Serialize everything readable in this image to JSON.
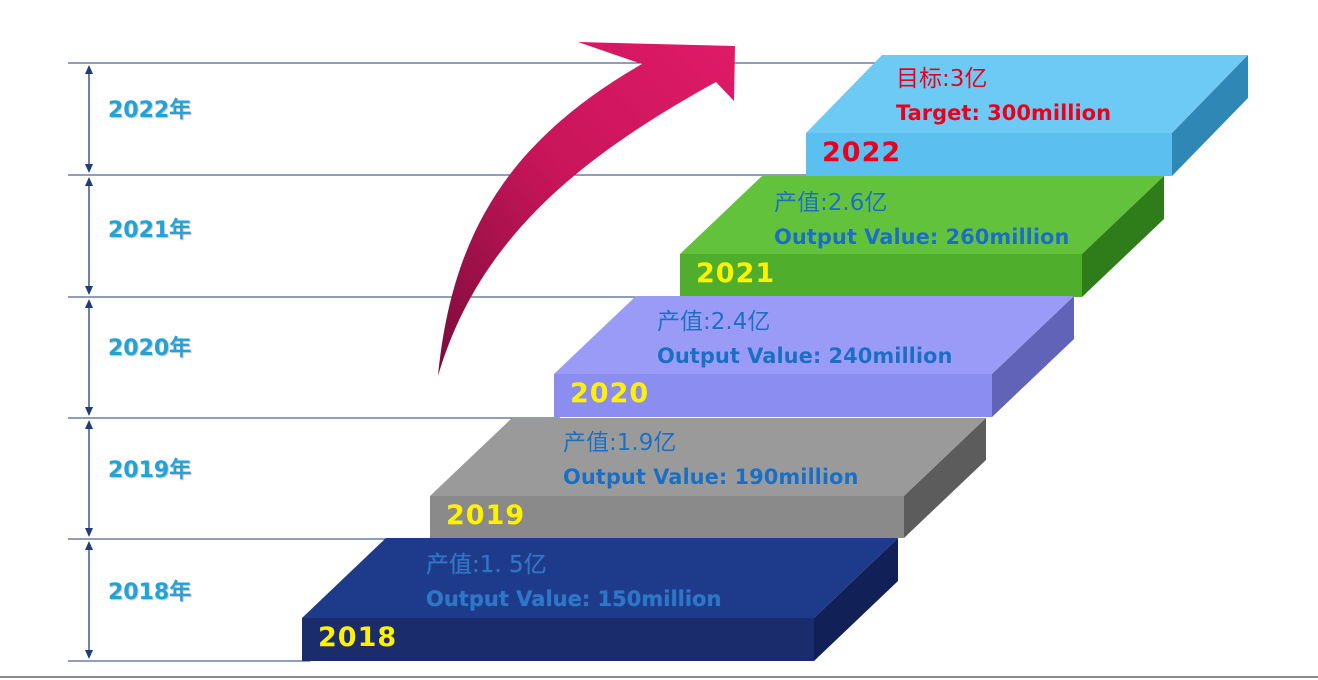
{
  "timeline": [
    {
      "label": "2022年"
    },
    {
      "label": "2021年"
    },
    {
      "label": "2020年"
    },
    {
      "label": "2019年"
    },
    {
      "label": "2018年"
    }
  ],
  "steps": [
    {
      "year": "2018",
      "line1": "产值:1. 5亿",
      "line2": "Output Value: 150million",
      "top_color": "#1e3a8a",
      "front_color": "#1a2c6b",
      "side_color": "#122058",
      "year_color": "#fff200",
      "text_color": "#2a78c9"
    },
    {
      "year": "2019",
      "line1": "产值:1.9亿",
      "line2": "Output Value: 190million",
      "top_color": "#9a9a9a",
      "front_color": "#8a8a8a",
      "side_color": "#5c5c5c",
      "year_color": "#fff200",
      "text_color": "#1a6fc4"
    },
    {
      "year": "2020",
      "line1": "产值:2.4亿",
      "line2": "Output Value: 240million",
      "top_color": "#9a9bf6",
      "front_color": "#8c8df0",
      "side_color": "#6163b8",
      "year_color": "#fff200",
      "text_color": "#1a6fc4"
    },
    {
      "year": "2021",
      "line1": "产值:2.6亿",
      "line2": "Output Value: 260million",
      "top_color": "#62c23c",
      "front_color": "#4faf2c",
      "side_color": "#2f7d1a",
      "year_color": "#fff200",
      "text_color": "#1a6fc4"
    },
    {
      "year": "2022",
      "line1": "目标:3亿",
      "line2": "Target: 300million",
      "top_color": "#6ccaf5",
      "front_color": "#5bc0f0",
      "side_color": "#2f87b5",
      "year_color": "#e8001c",
      "text_color": "#e8001c"
    }
  ],
  "colors": {
    "arrow": "#c8155a",
    "timeline": "#1f3d7a",
    "guides": "#1f3d7a"
  }
}
